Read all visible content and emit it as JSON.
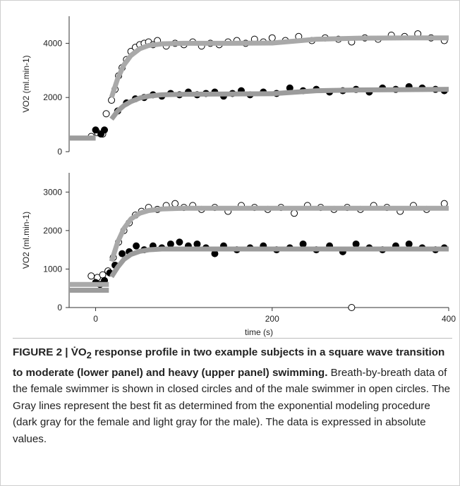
{
  "chart_data": [
    {
      "type": "scatter",
      "ylabel": "VO2 (ml.min-1)",
      "xlim": [
        -30,
        400
      ],
      "ylim": [
        0,
        5000
      ],
      "yticks": [
        0,
        2000,
        4000
      ],
      "series": [
        {
          "style": "open-circle",
          "color": "#000000",
          "x": [
            -5,
            2,
            8,
            12,
            18,
            22,
            26,
            30,
            35,
            40,
            45,
            50,
            55,
            60,
            65,
            70,
            80,
            90,
            100,
            110,
            120,
            130,
            140,
            150,
            160,
            170,
            180,
            190,
            200,
            215,
            230,
            245,
            260,
            275,
            290,
            305,
            320,
            335,
            350,
            365,
            380,
            395
          ],
          "values": [
            560,
            700,
            650,
            1400,
            1900,
            2300,
            2800,
            3100,
            3400,
            3700,
            3850,
            3950,
            4000,
            4050,
            3950,
            4100,
            3900,
            4000,
            3950,
            4050,
            3900,
            4000,
            3950,
            4050,
            4100,
            4000,
            4150,
            4050,
            4200,
            4100,
            4250,
            4100,
            4200,
            4150,
            4050,
            4200,
            4150,
            4300,
            4250,
            4350,
            4200,
            4100
          ]
        },
        {
          "style": "filled-circle",
          "color": "#000000",
          "x": [
            0,
            6,
            10,
            25,
            35,
            45,
            55,
            65,
            75,
            85,
            95,
            105,
            115,
            125,
            135,
            145,
            155,
            165,
            175,
            190,
            205,
            220,
            235,
            250,
            265,
            280,
            295,
            310,
            325,
            340,
            355,
            370,
            385,
            395
          ],
          "values": [
            800,
            650,
            800,
            1500,
            1800,
            1950,
            2000,
            2100,
            2050,
            2150,
            2100,
            2200,
            2100,
            2150,
            2200,
            2050,
            2150,
            2250,
            2100,
            2200,
            2150,
            2350,
            2250,
            2300,
            2200,
            2250,
            2300,
            2200,
            2350,
            2300,
            2400,
            2350,
            2300,
            2250
          ]
        },
        {
          "style": "line",
          "color": "#a9a9a9",
          "x": [
            -30,
            0,
            10,
            18,
            25,
            32,
            40,
            50,
            60,
            75,
            100,
            150,
            200,
            250,
            300,
            350,
            400
          ],
          "values": [
            500,
            500,
            null,
            2000,
            2700,
            3200,
            3550,
            3800,
            3920,
            3980,
            4000,
            4000,
            4010,
            4150,
            4190,
            4200,
            4200
          ]
        },
        {
          "style": "line",
          "color": "#9c9c9c",
          "x": [
            -30,
            0,
            10,
            18,
            25,
            32,
            40,
            50,
            60,
            75,
            100,
            150,
            200,
            250,
            300,
            350,
            400
          ],
          "values": [
            500,
            500,
            null,
            1200,
            1500,
            1700,
            1850,
            1980,
            2050,
            2100,
            2120,
            2130,
            2140,
            2250,
            2280,
            2290,
            2300
          ]
        }
      ]
    },
    {
      "type": "scatter",
      "ylabel": "VO2 (ml.min-1)",
      "xlabel": "time (s)",
      "xlim": [
        -30,
        400
      ],
      "ylim": [
        0,
        3500
      ],
      "yticks": [
        0,
        1000,
        2000,
        3000
      ],
      "xticks": [
        0,
        200,
        400
      ],
      "series": [
        {
          "style": "open-circle",
          "color": "#000000",
          "x": [
            -5,
            2,
            8,
            14,
            20,
            26,
            32,
            38,
            45,
            52,
            60,
            70,
            80,
            90,
            100,
            110,
            120,
            135,
            150,
            165,
            180,
            195,
            210,
            225,
            240,
            255,
            270,
            285,
            290,
            300,
            315,
            330,
            345,
            360,
            375,
            395
          ],
          "values": [
            820,
            780,
            850,
            950,
            1300,
            1700,
            2000,
            2200,
            2400,
            2500,
            2600,
            2550,
            2650,
            2700,
            2600,
            2650,
            2550,
            2600,
            2500,
            2650,
            2600,
            2550,
            2600,
            2450,
            2650,
            2600,
            2550,
            2600,
            0,
            2550,
            2650,
            2600,
            2500,
            2650,
            2550,
            2700
          ]
        },
        {
          "style": "filled-circle",
          "color": "#000000",
          "x": [
            0,
            5,
            10,
            16,
            22,
            30,
            38,
            46,
            55,
            65,
            75,
            85,
            95,
            105,
            115,
            125,
            135,
            145,
            160,
            175,
            190,
            205,
            220,
            235,
            250,
            265,
            280,
            295,
            310,
            325,
            340,
            355,
            370,
            385,
            395
          ],
          "values": [
            650,
            600,
            700,
            900,
            1100,
            1400,
            1450,
            1600,
            1500,
            1600,
            1550,
            1650,
            1700,
            1600,
            1650,
            1550,
            1400,
            1600,
            1500,
            1550,
            1600,
            1500,
            1550,
            1650,
            1500,
            1600,
            1450,
            1650,
            1550,
            1500,
            1600,
            1650,
            1550,
            1500,
            1550
          ]
        },
        {
          "style": "line",
          "color": "#a9a9a9",
          "x": [
            -30,
            15,
            16,
            18,
            25,
            32,
            40,
            50,
            60,
            75,
            100,
            150,
            200,
            300,
            400
          ],
          "values": [
            600,
            600,
            null,
            1200,
            1700,
            2050,
            2300,
            2450,
            2520,
            2560,
            2580,
            2580,
            2580,
            2580,
            2580
          ]
        },
        {
          "style": "line",
          "color": "#9c9c9c",
          "x": [
            -30,
            15,
            16,
            18,
            25,
            32,
            40,
            50,
            60,
            75,
            100,
            200,
            300,
            400
          ],
          "values": [
            450,
            450,
            null,
            800,
            1050,
            1250,
            1380,
            1460,
            1500,
            1520,
            1520,
            1520,
            1520,
            1520
          ]
        }
      ]
    }
  ],
  "caption": {
    "label": "FIGURE 2 |",
    "title_v": "V̇O",
    "title_sub": "2",
    "title_rest": "response profile in two example subjects in a square wave transition to moderate (lower panel) and heavy (upper panel) swimming.",
    "body": "Breath-by-breath data of the female swimmer is shown in closed circles and of the male swimmer in open circles. The Gray lines represent the best fit as determined from the exponential modeling procedure (dark gray for the female and light gray for the male). The data is expressed in absolute values."
  }
}
